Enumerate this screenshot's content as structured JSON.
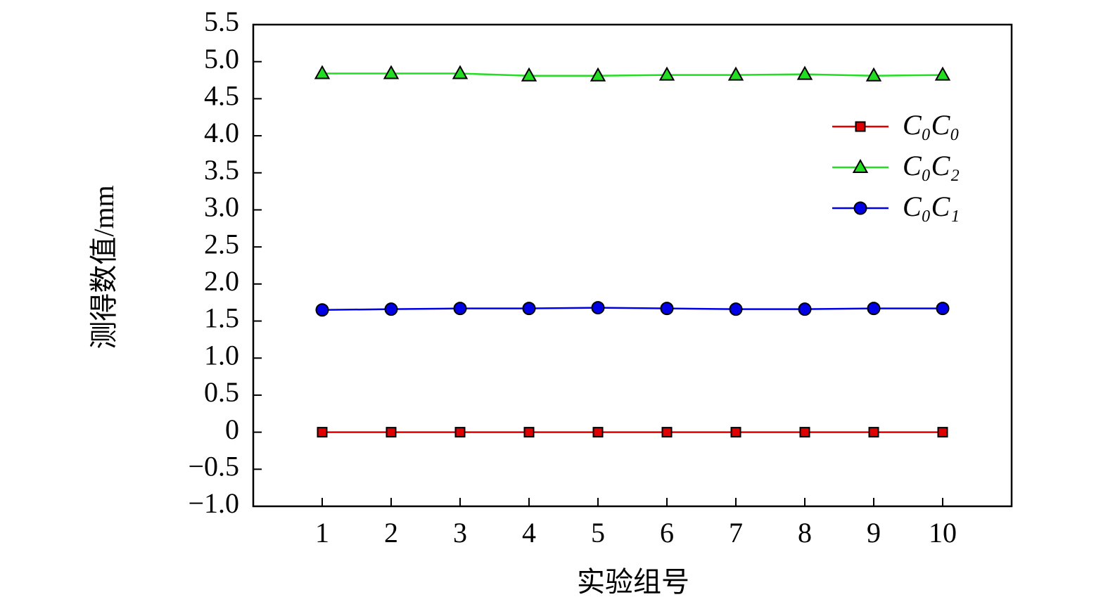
{
  "chart_data": {
    "type": "line",
    "x_label": "实验组号",
    "y_label": "测得数值/mm",
    "x": [
      1,
      2,
      3,
      4,
      5,
      6,
      7,
      8,
      9,
      10
    ],
    "xlim": [
      0,
      11
    ],
    "xticks": [
      1,
      2,
      3,
      4,
      5,
      6,
      7,
      8,
      9,
      10
    ],
    "ylim": [
      -1.0,
      5.5
    ],
    "yticks": [
      {
        "value": -1.0,
        "label": "−1.0"
      },
      {
        "value": -0.5,
        "label": "−0.5"
      },
      0,
      0.5,
      {
        "value": 1.0,
        "label": "1.0"
      },
      1.5,
      {
        "value": 2.0,
        "label": "2.0"
      },
      2.5,
      {
        "value": 3.0,
        "label": "3.0"
      },
      3.5,
      {
        "value": 4.0,
        "label": "4.0"
      },
      4.5,
      {
        "value": 5.0,
        "label": "5.0"
      },
      5.5
    ],
    "legend": "upper right",
    "series": [
      {
        "name": "C₀C₀",
        "color": "#e00000",
        "marker": "square",
        "values": [
          0,
          0,
          0,
          0,
          0,
          0,
          0,
          0,
          0,
          0
        ]
      },
      {
        "name": "C₀C₂",
        "color": "#22dd22",
        "marker": "triangle",
        "values": [
          4.84,
          4.84,
          4.84,
          4.81,
          4.81,
          4.82,
          4.82,
          4.83,
          4.81,
          4.82
        ]
      },
      {
        "name": "C₀C₁",
        "color": "#0000e6",
        "marker": "circle",
        "values": [
          1.65,
          1.66,
          1.67,
          1.67,
          1.68,
          1.67,
          1.66,
          1.66,
          1.67,
          1.67
        ]
      }
    ]
  }
}
